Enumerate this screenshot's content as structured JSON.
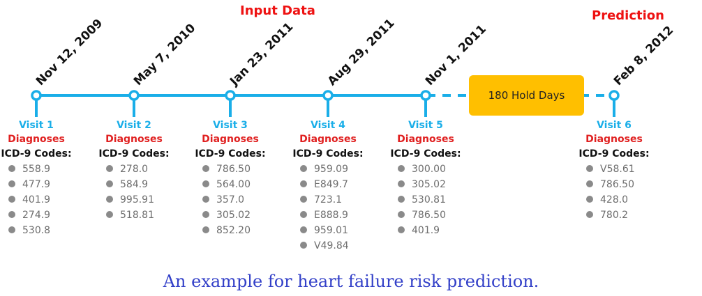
{
  "headings": {
    "input": "Input Data",
    "prediction": "Prediction"
  },
  "hold_label": "180 Hold Days",
  "caption": "An example for heart failure risk prediction.",
  "colors": {
    "timeline": "#1aaee8",
    "hold_box": "#ffbf00",
    "heading": "#ee1111",
    "caption": "#3340c8"
  },
  "visits": [
    {
      "date": "Nov 12, 2009",
      "label": "Visit 1",
      "diagnoses": "Diagnoses",
      "codes_label": "ICD-9 Codes:",
      "codes": [
        "558.9",
        "477.9",
        "401.9",
        "274.9",
        "530.8"
      ]
    },
    {
      "date": "May 7, 2010",
      "label": "Visit 2",
      "diagnoses": "Diagnoses",
      "codes_label": "ICD-9 Codes:",
      "codes": [
        "278.0",
        "584.9",
        "995.91",
        "518.81"
      ]
    },
    {
      "date": "Jan 23, 2011",
      "label": "Visit 3",
      "diagnoses": "Diagnoses",
      "codes_label": "ICD-9 Codes:",
      "codes": [
        "786.50",
        "564.00",
        "357.0",
        "305.02",
        "852.20"
      ]
    },
    {
      "date": "Aug 29, 2011",
      "label": "Visit 4",
      "diagnoses": "Diagnoses",
      "codes_label": "ICD-9 Codes:",
      "codes": [
        "959.09",
        "E849.7",
        "723.1",
        "E888.9",
        "959.01",
        "V49.84"
      ]
    },
    {
      "date": "Nov 1, 2011",
      "label": "Visit 5",
      "diagnoses": "Diagnoses",
      "codes_label": "ICD-9 Codes:",
      "codes": [
        "300.00",
        "305.02",
        "530.81",
        "786.50",
        "401.9"
      ]
    },
    {
      "date": "Feb 8, 2012",
      "label": "Visit 6",
      "diagnoses": "Diagnoses",
      "codes_label": "ICD-9 Codes:",
      "codes": [
        "V58.61",
        "786.50",
        "428.0",
        "780.2"
      ]
    }
  ]
}
